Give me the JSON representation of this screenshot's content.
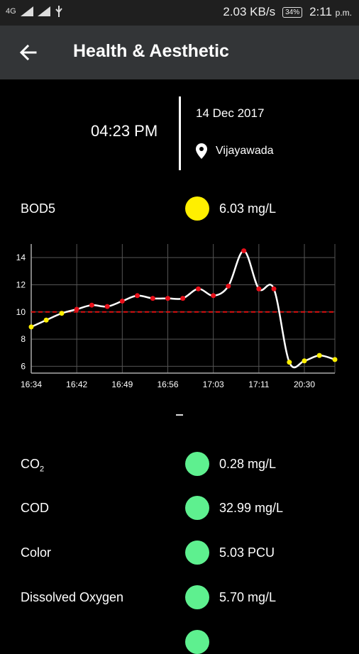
{
  "status_bar": {
    "network": "4G",
    "speed": "2.03 KB/s",
    "battery": "34%",
    "time": "2:11",
    "ampm": "p.m."
  },
  "app_bar": {
    "title": "Health & Aesthetic"
  },
  "reading": {
    "time": "04:23 PM",
    "date": "14 Dec 2017",
    "location": "Vijayawada"
  },
  "primary_param": {
    "name": "BOD5",
    "value": "6.03 mg/L",
    "color": "#ffef00"
  },
  "separator": "–",
  "parameters": [
    {
      "name": "CO",
      "sub": "2",
      "value": "0.28 mg/L",
      "color": "#5ef08f"
    },
    {
      "name": "COD",
      "value": "32.99 mg/L",
      "color": "#5ef08f"
    },
    {
      "name": "Color",
      "value": "5.03 PCU",
      "color": "#5ef08f"
    },
    {
      "name": "Dissolved Oxygen",
      "value": "5.70 mg/L",
      "color": "#5ef08f"
    }
  ],
  "chart_data": {
    "type": "line",
    "categories": [
      "16:34",
      "16:42",
      "16:49",
      "16:56",
      "17:03",
      "17:11",
      "20:30"
    ],
    "ylim": [
      5.5,
      15
    ],
    "yticks": [
      6,
      8,
      10,
      12,
      14
    ],
    "threshold": 10,
    "series": [
      {
        "values": [
          {
            "x": 0.0,
            "y": 8.9,
            "c": "yellow"
          },
          {
            "x": 0.33,
            "y": 9.4,
            "c": "yellow"
          },
          {
            "x": 0.67,
            "y": 9.9,
            "c": "yellow"
          },
          {
            "x": 1.0,
            "y": 10.2,
            "c": "red"
          },
          {
            "x": 1.33,
            "y": 10.5,
            "c": "red"
          },
          {
            "x": 1.67,
            "y": 10.4,
            "c": "red"
          },
          {
            "x": 2.0,
            "y": 10.8,
            "c": "red"
          },
          {
            "x": 2.33,
            "y": 11.2,
            "c": "red"
          },
          {
            "x": 2.67,
            "y": 11.0,
            "c": "red"
          },
          {
            "x": 3.0,
            "y": 11.0,
            "c": "red"
          },
          {
            "x": 3.33,
            "y": 11.0,
            "c": "red"
          },
          {
            "x": 3.67,
            "y": 11.7,
            "c": "red"
          },
          {
            "x": 4.0,
            "y": 11.2,
            "c": "red"
          },
          {
            "x": 4.33,
            "y": 11.9,
            "c": "red"
          },
          {
            "x": 4.67,
            "y": 14.5,
            "c": "red"
          },
          {
            "x": 5.0,
            "y": 11.7,
            "c": "red"
          },
          {
            "x": 5.33,
            "y": 11.7,
            "c": "red"
          },
          {
            "x": 5.67,
            "y": 6.3,
            "c": "yellow"
          },
          {
            "x": 6.0,
            "y": 6.4,
            "c": "yellow"
          },
          {
            "x": 6.33,
            "y": 6.8,
            "c": "yellow"
          },
          {
            "x": 6.67,
            "y": 6.5,
            "c": "yellow"
          }
        ]
      }
    ]
  }
}
